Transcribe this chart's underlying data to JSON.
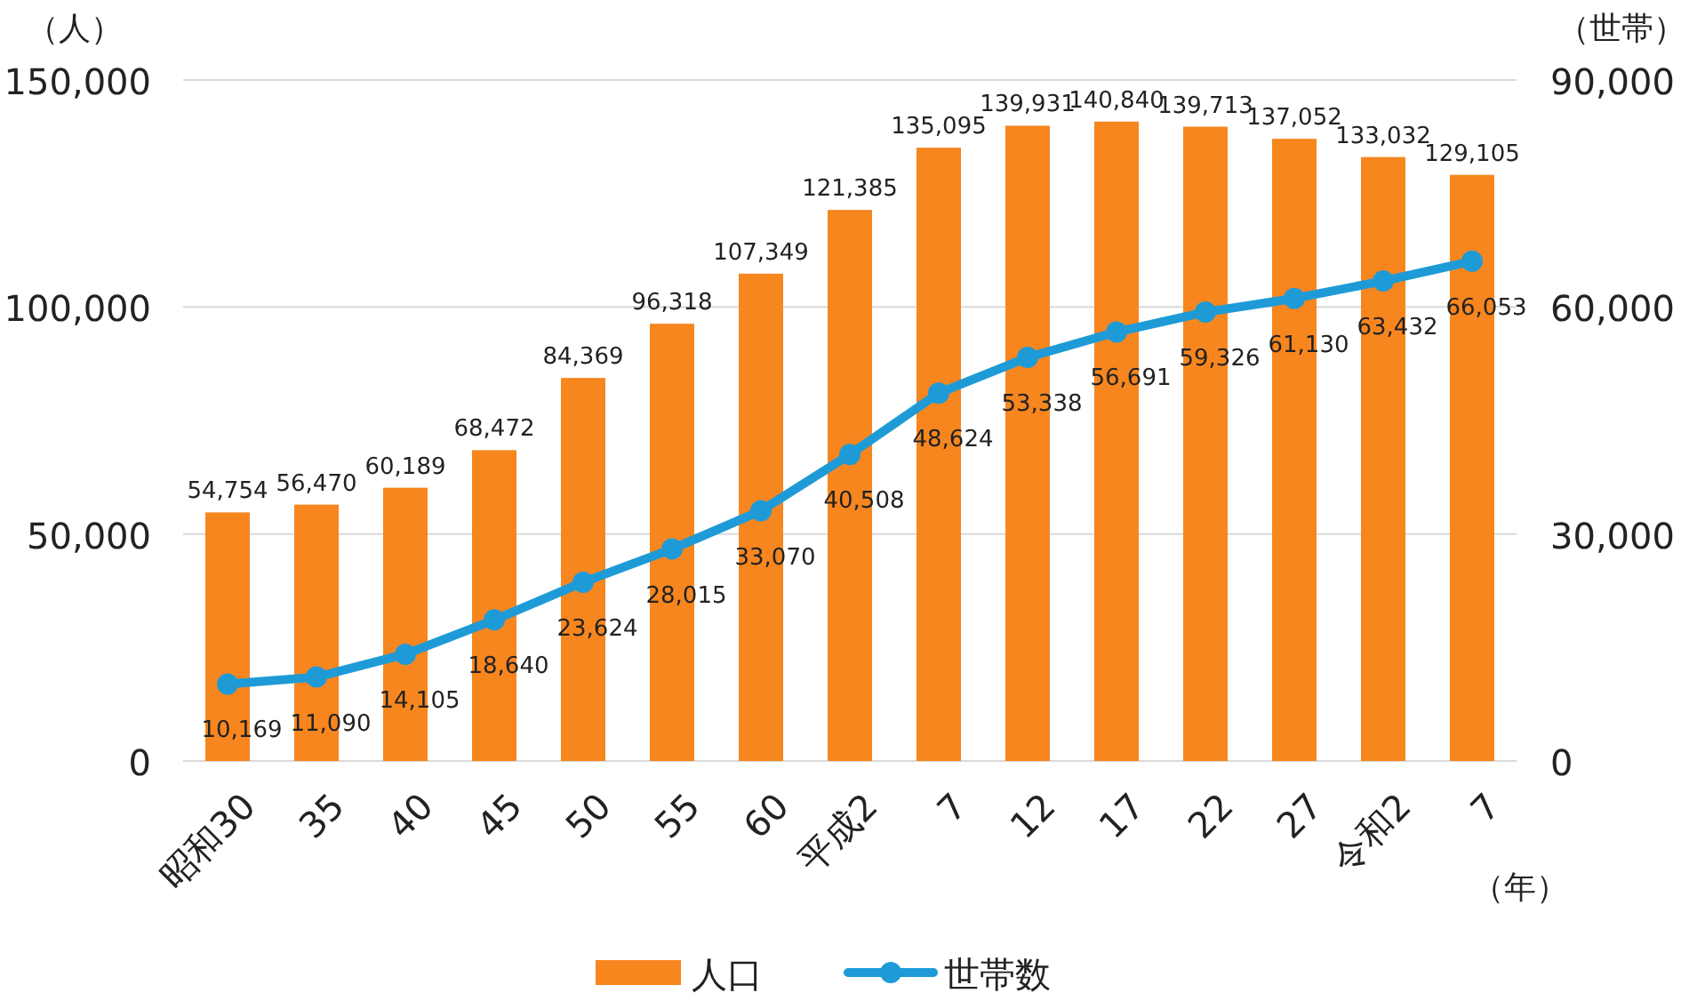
{
  "chart_data": {
    "type": "bar",
    "ylabel": "（人）",
    "y2label": "（世帯）",
    "xlabel": "（年）",
    "categories": [
      "昭和30",
      "35",
      "40",
      "45",
      "50",
      "55",
      "60",
      "平成2",
      "7",
      "12",
      "17",
      "22",
      "27",
      "令和2",
      "7"
    ],
    "series": [
      {
        "name": "人口",
        "color": "#f7861f",
        "values": [
          54754,
          56470,
          60189,
          68472,
          84369,
          96318,
          107349,
          121385,
          135095,
          139931,
          140840,
          139713,
          137052,
          133032,
          129105
        ],
        "value_labels": [
          "54,754",
          "56,470",
          "60,189",
          "68,472",
          "84,369",
          "96,318",
          "107,349",
          "121,385",
          "135,095",
          "139,931",
          "140,840",
          "139,713",
          "137,052",
          "133,032",
          "129,105"
        ]
      },
      {
        "name": "世帯数",
        "type": "line",
        "axis": "y2",
        "color": "#1e9bd7",
        "values": [
          10169,
          11090,
          14105,
          18640,
          23624,
          28015,
          33070,
          40508,
          48624,
          53338,
          56691,
          59326,
          61130,
          63432,
          66053
        ],
        "value_labels": [
          "10,169",
          "11,090",
          "14,105",
          "18,640",
          "23,624",
          "28,015",
          "33,070",
          "40,508",
          "48,624",
          "53,338",
          "56,691",
          "59,326",
          "61,130",
          "63,432",
          "66,053"
        ]
      }
    ],
    "ylim": [
      0,
      150000
    ],
    "yticks": [
      0,
      {
        "value": 50000,
        "label": "50,000"
      },
      {
        "value": 100000,
        "label": "100,000"
      },
      {
        "value": 150000,
        "label": "150,000"
      }
    ],
    "y2lim": [
      0,
      90000
    ],
    "y2ticks": [
      0,
      {
        "value": 30000,
        "label": "30,000"
      },
      {
        "value": 60000,
        "label": "60,000"
      },
      {
        "value": 90000,
        "label": "90,000"
      }
    ],
    "grid": "y",
    "legend": "bottom",
    "marker": "circle"
  }
}
